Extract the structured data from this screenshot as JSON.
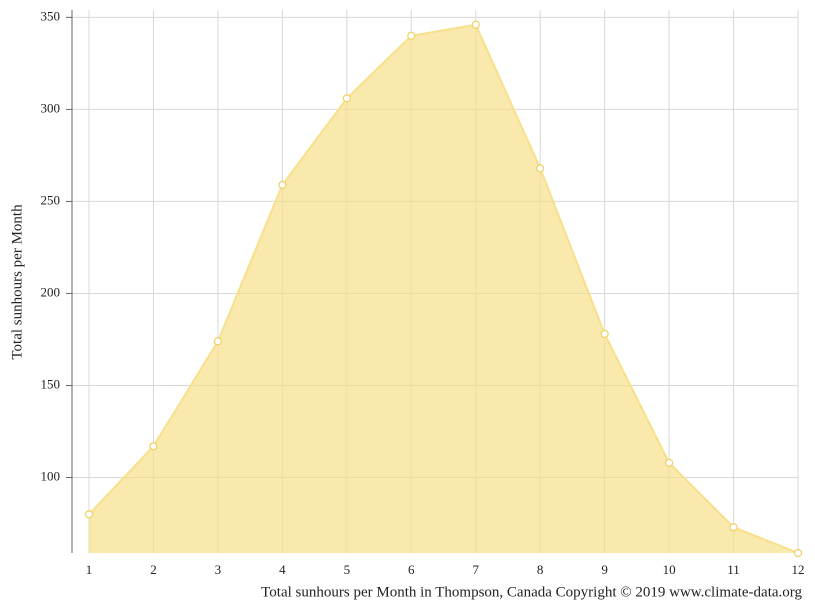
{
  "chart_data": {
    "type": "area",
    "x": [
      1,
      2,
      3,
      4,
      5,
      6,
      7,
      8,
      9,
      10,
      11,
      12
    ],
    "series": [
      {
        "name": "Total sunhours per Month",
        "color": "#f7e08a",
        "values": [
          80,
          117,
          174,
          259,
          306,
          340,
          346,
          268,
          178,
          108,
          73,
          59
        ]
      }
    ],
    "ylabel": "Total sunhours per Month",
    "caption": "Total sunhours per Month in Thompson, Canada Copyright © 2019 www.climate-data.org",
    "xlim": [
      1,
      12
    ],
    "xticks": [
      1,
      2,
      3,
      4,
      5,
      6,
      7,
      8,
      9,
      10,
      11,
      12
    ],
    "ylim": [
      59,
      354
    ],
    "yticks": [
      100,
      150,
      200,
      250,
      300,
      350
    ],
    "grid": true
  }
}
